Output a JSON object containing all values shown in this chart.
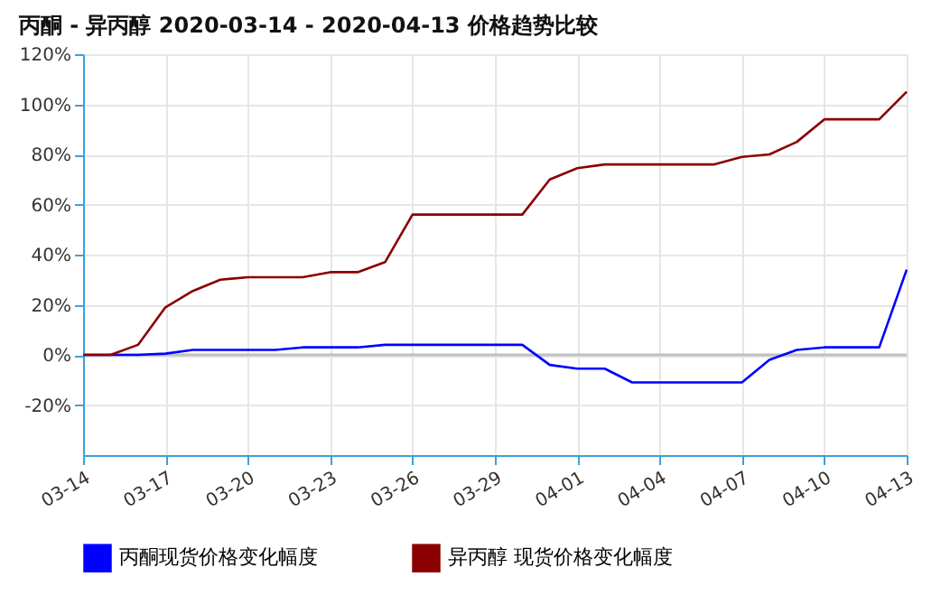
{
  "chart_data": {
    "type": "line",
    "title": "丙酮 - 异丙醇 2020-03-14 - 2020-04-13 价格趋势比较",
    "x": [
      "2020-03-14",
      "2020-03-15",
      "2020-03-16",
      "2020-03-17",
      "2020-03-18",
      "2020-03-19",
      "2020-03-20",
      "2020-03-21",
      "2020-03-22",
      "2020-03-23",
      "2020-03-24",
      "2020-03-25",
      "2020-03-26",
      "2020-03-27",
      "2020-03-28",
      "2020-03-29",
      "2020-03-30",
      "2020-03-31",
      "2020-04-01",
      "2020-04-02",
      "2020-04-03",
      "2020-04-04",
      "2020-04-05",
      "2020-04-06",
      "2020-04-07",
      "2020-04-08",
      "2020-04-09",
      "2020-04-10",
      "2020-04-11",
      "2020-04-12",
      "2020-04-13"
    ],
    "series": [
      {
        "name": "丙酮现货价格变化幅度",
        "color": "#0000ff",
        "values": [
          0,
          0,
          0,
          0.5,
          2,
          2,
          2,
          2,
          3,
          3,
          3,
          4,
          4,
          4,
          4,
          4,
          4,
          -4,
          -5.5,
          -5.5,
          -11,
          -11,
          -11,
          -11,
          -11,
          -2,
          2,
          3,
          3,
          3,
          34
        ]
      },
      {
        "name": "异丙醇 现货价格变化幅度",
        "color": "#8b0000",
        "values": [
          0,
          0,
          4,
          19,
          25.5,
          30,
          31,
          31,
          31,
          33,
          33,
          37,
          56,
          56,
          56,
          56,
          56,
          70,
          74.5,
          76,
          76,
          76,
          76,
          76,
          79,
          80,
          85,
          94,
          94,
          94,
          105
        ]
      }
    ],
    "xlim": [
      "2020-03-14",
      "2020-04-13"
    ],
    "xticks": [
      {
        "value": "2020-03-14",
        "label": "03-14"
      },
      {
        "value": "2020-03-17",
        "label": "03-17"
      },
      {
        "value": "2020-03-20",
        "label": "03-20"
      },
      {
        "value": "2020-03-23",
        "label": "03-23"
      },
      {
        "value": "2020-03-26",
        "label": "03-26"
      },
      {
        "value": "2020-03-29",
        "label": "03-29"
      },
      {
        "value": "2020-04-01",
        "label": "04-01"
      },
      {
        "value": "2020-04-04",
        "label": "04-04"
      },
      {
        "value": "2020-04-07",
        "label": "04-07"
      },
      {
        "value": "2020-04-10",
        "label": "04-10"
      },
      {
        "value": "2020-04-13",
        "label": "04-13"
      }
    ],
    "ylim": [
      -40,
      120
    ],
    "yticks": [
      {
        "value": -20,
        "label": "-20%"
      },
      {
        "value": 0,
        "label": "0%"
      },
      {
        "value": 20,
        "label": "20%"
      },
      {
        "value": 40,
        "label": "40%"
      },
      {
        "value": 60,
        "label": "60%"
      },
      {
        "value": 80,
        "label": "80%"
      },
      {
        "value": 100,
        "label": "100%"
      },
      {
        "value": 120,
        "label": "120%"
      }
    ],
    "ref_lines": [
      {
        "axis": "y",
        "value": 0,
        "color": "#c0c0c0"
      }
    ],
    "grid": true,
    "legend": "bottom left",
    "marker": "none",
    "line_style": "solid"
  }
}
